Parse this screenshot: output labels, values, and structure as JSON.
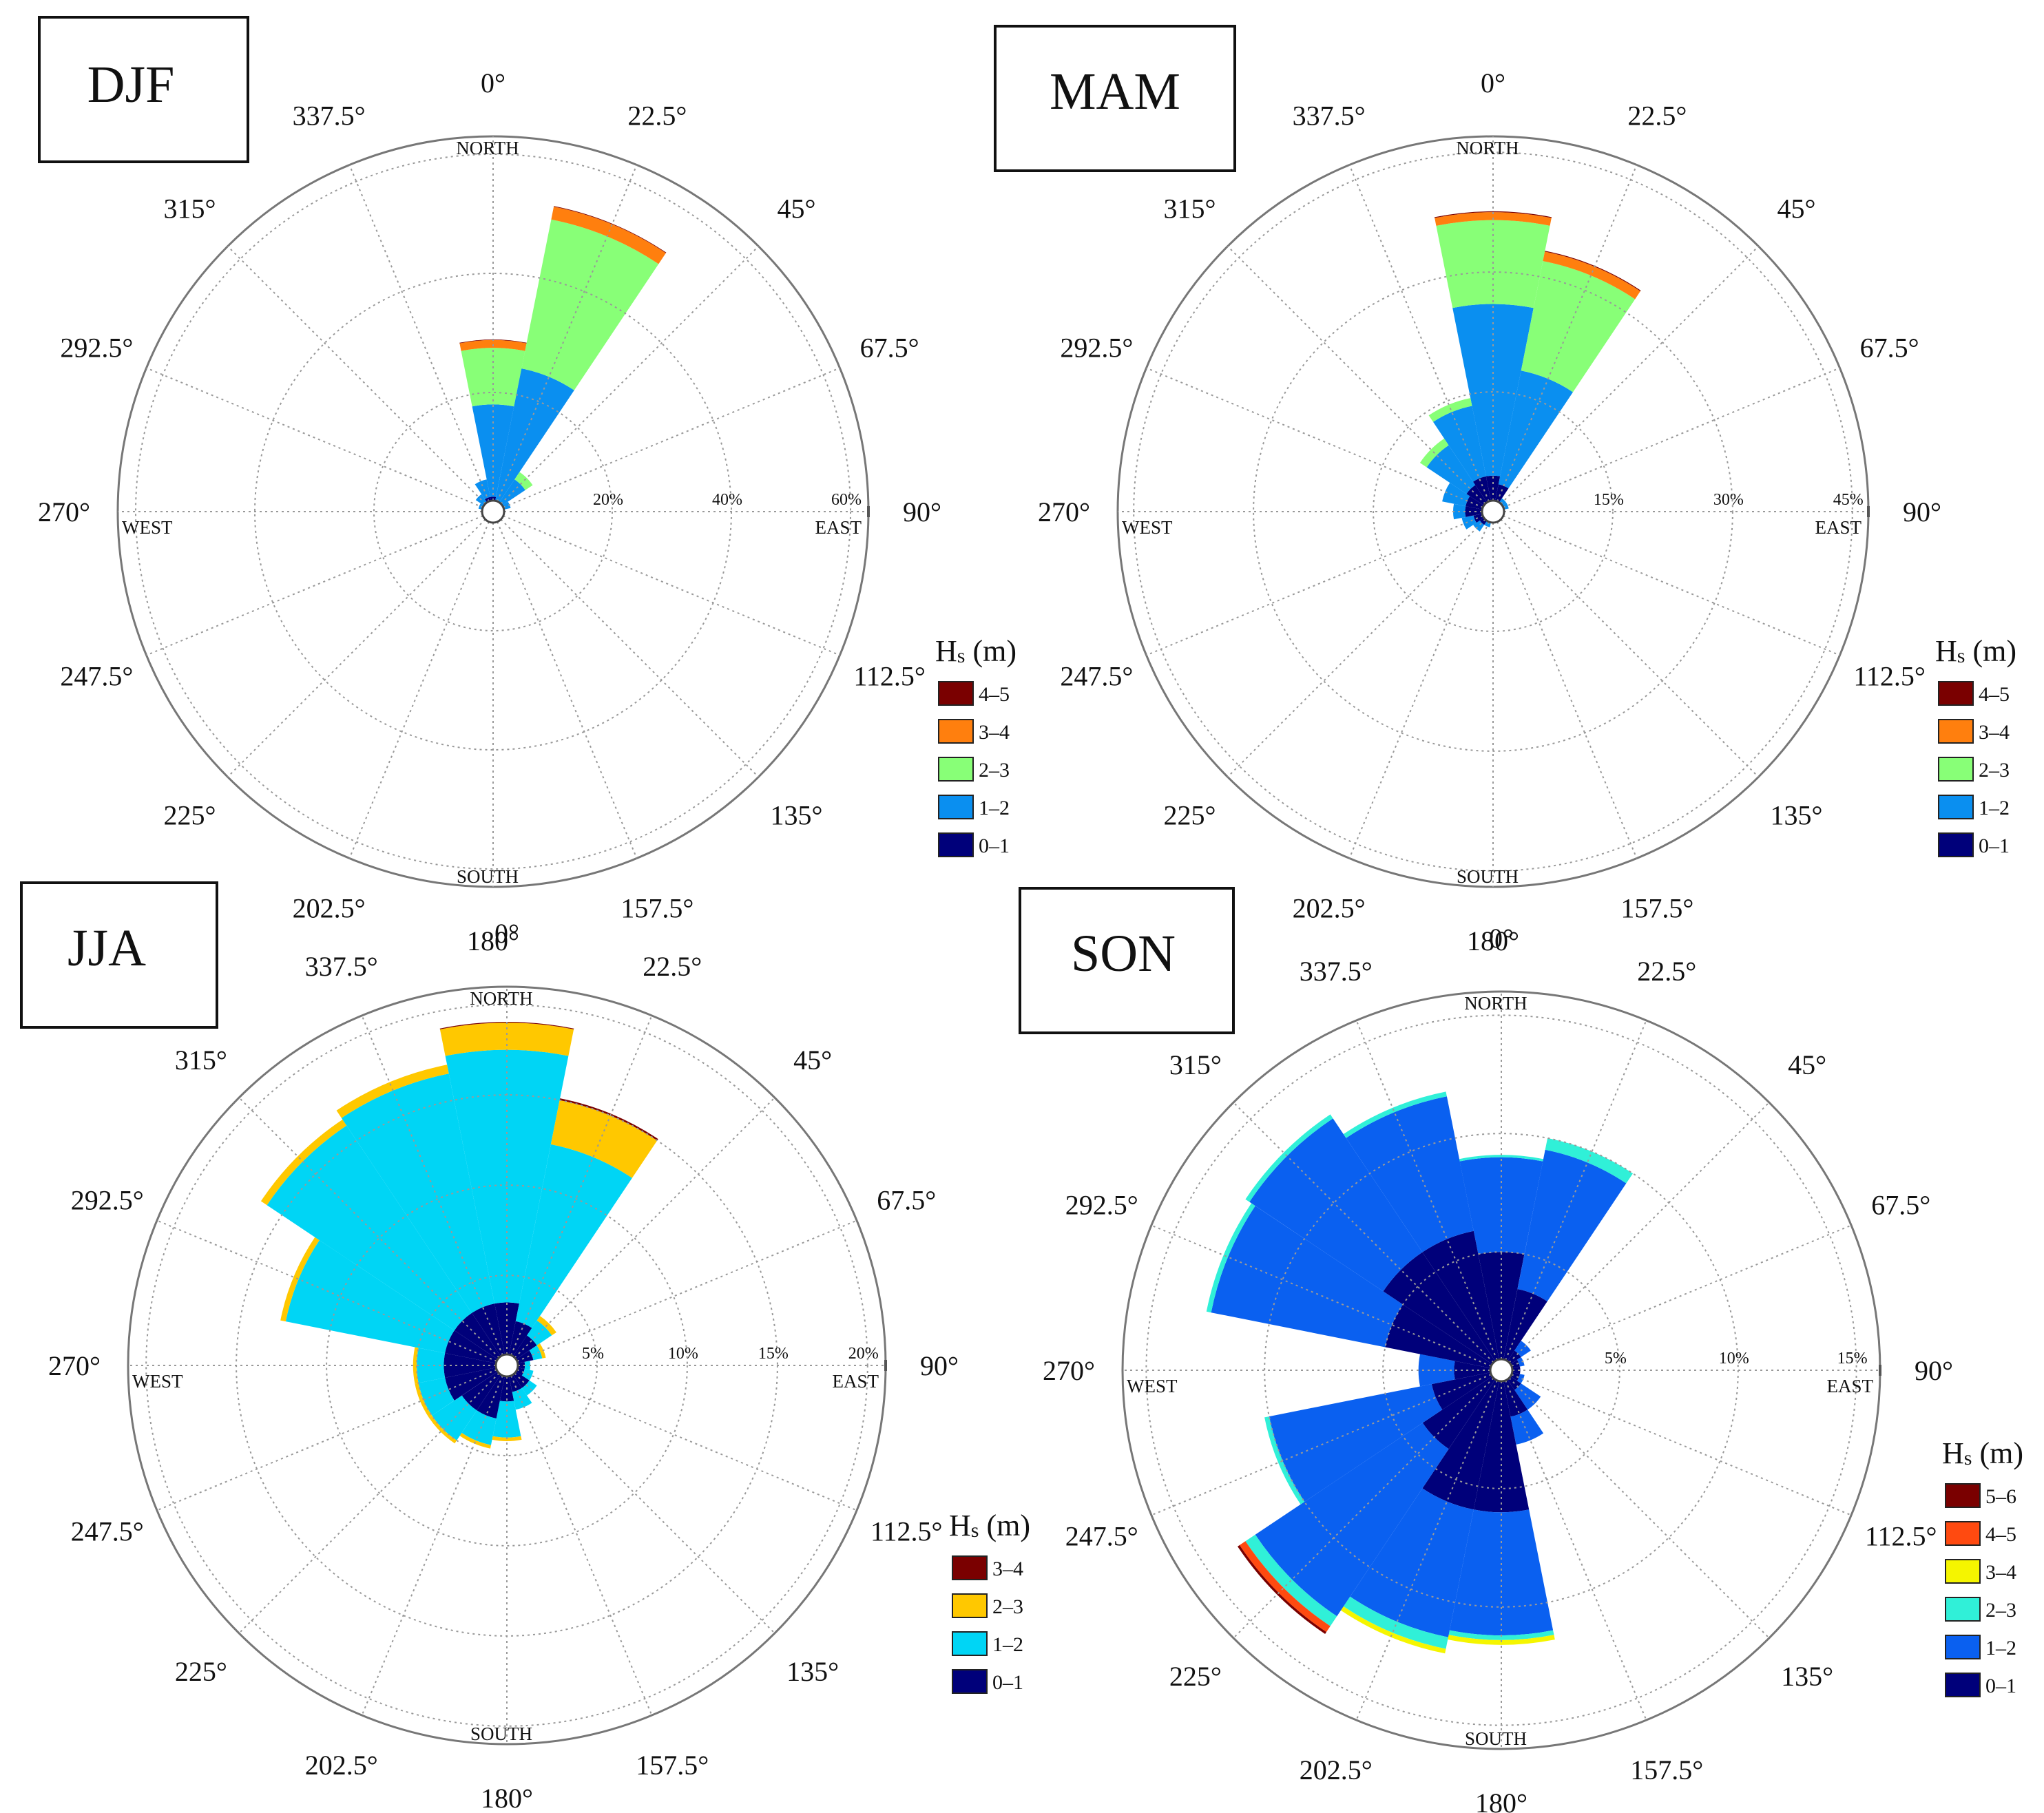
{
  "chart_data": [
    {
      "type": "polar-bar",
      "title": "DJF",
      "direction_labels": [
        "0°",
        "22.5°",
        "45°",
        "67.5°",
        "90°",
        "112.5°",
        "135°",
        "157.5°",
        "180°",
        "202.5°",
        "225°",
        "247.5°",
        "270°",
        "292.5°",
        "315°",
        "337.5°"
      ],
      "cardinal_labels": {
        "north": "NORTH",
        "east": "EAST",
        "south": "SOUTH",
        "west": "WEST"
      },
      "radial_ticks": [
        20,
        40,
        60
      ],
      "radial_tick_labels": [
        "20%",
        "40%",
        "60%"
      ],
      "rmax": 63,
      "legend_title": "Hs (m)",
      "legend_title_main": "H",
      "legend_title_sub": "s",
      "legend_title_unit": " (m)",
      "bins": [
        {
          "label": "4–5",
          "color": "#7a0000"
        },
        {
          "label": "3–4",
          "color": "#ff7f0e"
        },
        {
          "label": "2–3",
          "color": "#88ff77"
        },
        {
          "label": "1–2",
          "color": "#0a8ff0"
        },
        {
          "label": "0–1",
          "color": "#00007a"
        }
      ],
      "series_order": [
        "0–1",
        "1–2",
        "2–3",
        "3–4",
        "4–5"
      ],
      "bin_colors": {
        "0–1": "#00007a",
        "1–2": "#0a8ff0",
        "2–3": "#88ff77",
        "3–4": "#ff7f0e",
        "4–5": "#7a0000"
      },
      "sectors": [
        {
          "dir": 0,
          "cum": [
            2.5,
            18.0,
            27.5,
            28.8,
            28.9
          ]
        },
        {
          "dir": 22.5,
          "cum": [
            2.0,
            24.5,
            50.0,
            52.2,
            52.3
          ]
        },
        {
          "dir": 45,
          "cum": [
            2.0,
            6.5,
            8.0,
            8.0,
            8.0
          ]
        },
        {
          "dir": 67.5,
          "cum": [
            1.8,
            3.0,
            3.0,
            3.0,
            3.0
          ]
        },
        {
          "dir": 90,
          "cum": [
            0.6,
            0.6,
            0.6,
            0.6,
            0.6
          ]
        },
        {
          "dir": 112.5,
          "cum": [
            0.6,
            0.6,
            0.6,
            0.6,
            0.6
          ]
        },
        {
          "dir": 135,
          "cum": [
            0.6,
            0.6,
            0.6,
            0.6,
            0.6
          ]
        },
        {
          "dir": 157.5,
          "cum": [
            0.6,
            0.6,
            0.6,
            0.6,
            0.6
          ]
        },
        {
          "dir": 180,
          "cum": [
            0.6,
            0.6,
            0.6,
            0.6,
            0.6
          ]
        },
        {
          "dir": 202.5,
          "cum": [
            0.6,
            0.6,
            0.6,
            0.6,
            0.6
          ]
        },
        {
          "dir": 225,
          "cum": [
            0.6,
            0.6,
            0.6,
            0.6,
            0.6
          ]
        },
        {
          "dir": 247.5,
          "cum": [
            0.6,
            0.6,
            0.6,
            0.6,
            0.6
          ]
        },
        {
          "dir": 270,
          "cum": [
            0.8,
            0.8,
            0.8,
            0.8,
            0.8
          ]
        },
        {
          "dir": 292.5,
          "cum": [
            1.5,
            2.5,
            2.5,
            2.5,
            2.5
          ]
        },
        {
          "dir": 315,
          "cum": [
            2.0,
            3.5,
            3.5,
            3.5,
            3.5
          ]
        },
        {
          "dir": 337.5,
          "cum": [
            2.5,
            5.5,
            5.5,
            5.5,
            5.5
          ]
        }
      ]
    },
    {
      "type": "polar-bar",
      "title": "MAM",
      "direction_labels": [
        "0°",
        "22.5°",
        "45°",
        "67.5°",
        "90°",
        "112.5°",
        "135°",
        "157.5°",
        "180°",
        "202.5°",
        "225°",
        "247.5°",
        "270°",
        "292.5°",
        "315°",
        "337.5°"
      ],
      "cardinal_labels": {
        "north": "NORTH",
        "east": "EAST",
        "south": "SOUTH",
        "west": "WEST"
      },
      "radial_ticks": [
        15,
        30,
        45
      ],
      "radial_tick_labels": [
        "15%",
        "30%",
        "45%"
      ],
      "rmax": 47,
      "legend_title": "Hs (m)",
      "legend_title_main": "H",
      "legend_title_sub": "s",
      "legend_title_unit": " (m)",
      "bins": [
        {
          "label": "4–5",
          "color": "#7a0000"
        },
        {
          "label": "3–4",
          "color": "#ff7f0e"
        },
        {
          "label": "2–3",
          "color": "#88ff77"
        },
        {
          "label": "1–2",
          "color": "#0a8ff0"
        },
        {
          "label": "0–1",
          "color": "#00007a"
        }
      ],
      "series_order": [
        "0–1",
        "1–2",
        "2–3",
        "3–4",
        "4–5"
      ],
      "bin_colors": {
        "0–1": "#00007a",
        "1–2": "#0a8ff0",
        "2–3": "#88ff77",
        "3–4": "#ff7f0e",
        "4–5": "#7a0000"
      },
      "sectors": [
        {
          "dir": 0,
          "cum": [
            4.5,
            26.0,
            36.5,
            37.5,
            37.6
          ]
        },
        {
          "dir": 22.5,
          "cum": [
            3.5,
            18.0,
            32.0,
            33.2,
            33.3
          ]
        },
        {
          "dir": 45,
          "cum": [
            1.5,
            2.0,
            2.0,
            2.0,
            2.0
          ]
        },
        {
          "dir": 67.5,
          "cum": [
            1.5,
            2.0,
            2.0,
            2.0,
            2.0
          ]
        },
        {
          "dir": 90,
          "cum": [
            1.0,
            1.0,
            1.0,
            1.0,
            1.0
          ]
        },
        {
          "dir": 112.5,
          "cum": [
            1.0,
            1.0,
            1.0,
            1.0,
            1.0
          ]
        },
        {
          "dir": 135,
          "cum": [
            1.0,
            1.0,
            1.0,
            1.0,
            1.0
          ]
        },
        {
          "dir": 157.5,
          "cum": [
            1.0,
            1.0,
            1.0,
            1.0,
            1.0
          ]
        },
        {
          "dir": 180,
          "cum": [
            1.2,
            1.2,
            1.2,
            1.2,
            1.2
          ]
        },
        {
          "dir": 202.5,
          "cum": [
            1.5,
            2.0,
            2.0,
            2.0,
            2.0
          ]
        },
        {
          "dir": 225,
          "cum": [
            2.0,
            3.0,
            3.0,
            3.0,
            3.0
          ]
        },
        {
          "dir": 247.5,
          "cum": [
            2.5,
            4.0,
            4.0,
            4.0,
            4.0
          ]
        },
        {
          "dir": 270,
          "cum": [
            3.5,
            5.0,
            5.0,
            5.0,
            5.0
          ]
        },
        {
          "dir": 292.5,
          "cum": [
            3.5,
            6.5,
            6.5,
            6.5,
            6.5
          ]
        },
        {
          "dir": 315,
          "cum": [
            4.0,
            10.0,
            11.0,
            11.0,
            11.0
          ]
        },
        {
          "dir": 337.5,
          "cum": [
            4.5,
            13.5,
            14.5,
            14.5,
            14.5
          ]
        }
      ]
    },
    {
      "type": "polar-bar",
      "title": "JJA",
      "direction_labels": [
        "0°",
        "22.5°",
        "45°",
        "67.5°",
        "90°",
        "112.5°",
        "135°",
        "157.5°",
        "180°",
        "202.5°",
        "225°",
        "247.5°",
        "270°",
        "292.5°",
        "315°",
        "337.5°"
      ],
      "cardinal_labels": {
        "north": "NORTH",
        "east": "EAST",
        "south": "SOUTH",
        "west": "WEST"
      },
      "radial_ticks": [
        5,
        10,
        15,
        20
      ],
      "radial_tick_labels": [
        "5%",
        "10%",
        "15%",
        "20%"
      ],
      "rmax": 21,
      "legend_title": "Hs (m)",
      "legend_title_main": "H",
      "legend_title_sub": "s",
      "legend_title_unit": " (m)",
      "bins": [
        {
          "label": "3–4",
          "color": "#7a0000"
        },
        {
          "label": "2–3",
          "color": "#ffc800"
        },
        {
          "label": "1–2",
          "color": "#00d5f5"
        },
        {
          "label": "0–1",
          "color": "#00007a"
        }
      ],
      "series_order": [
        "0–1",
        "1–2",
        "2–3",
        "3–4"
      ],
      "bin_colors": {
        "0–1": "#00007a",
        "1–2": "#00d5f5",
        "2–3": "#ffc800",
        "3–4": "#7a0000"
      },
      "sectors": [
        {
          "dir": 0,
          "cum": [
            3.5,
            17.5,
            19.0,
            19.05
          ]
        },
        {
          "dir": 22.5,
          "cum": [
            2.5,
            12.5,
            15.0,
            15.1
          ]
        },
        {
          "dir": 45,
          "cum": [
            2.0,
            3.0,
            3.3,
            3.3
          ]
        },
        {
          "dir": 67.5,
          "cum": [
            1.5,
            2.0,
            2.2,
            2.2
          ]
        },
        {
          "dir": 90,
          "cum": [
            1.0,
            1.3,
            1.3,
            1.3
          ]
        },
        {
          "dir": 112.5,
          "cum": [
            1.0,
            1.5,
            1.5,
            1.5
          ]
        },
        {
          "dir": 135,
          "cum": [
            1.5,
            2.0,
            2.0,
            2.0
          ]
        },
        {
          "dir": 157.5,
          "cum": [
            1.5,
            2.5,
            2.5,
            2.5
          ]
        },
        {
          "dir": 180,
          "cum": [
            2.0,
            4.0,
            4.2,
            4.2
          ]
        },
        {
          "dir": 202.5,
          "cum": [
            3.0,
            4.5,
            4.7,
            4.7
          ]
        },
        {
          "dir": 225,
          "cum": [
            3.0,
            5.0,
            5.2,
            5.2
          ]
        },
        {
          "dir": 247.5,
          "cum": [
            3.5,
            5.0,
            5.2,
            5.2
          ]
        },
        {
          "dir": 270,
          "cum": [
            3.5,
            5.0,
            5.2,
            5.2
          ]
        },
        {
          "dir": 292.5,
          "cum": [
            3.5,
            12.5,
            12.8,
            12.8
          ]
        },
        {
          "dir": 315,
          "cum": [
            3.5,
            16.0,
            16.4,
            16.4
          ]
        },
        {
          "dir": 337.5,
          "cum": [
            3.5,
            16.5,
            17.0,
            17.0
          ]
        }
      ]
    },
    {
      "type": "polar-bar",
      "title": "SON",
      "direction_labels": [
        "0°",
        "22.5°",
        "45°",
        "67.5°",
        "90°",
        "112.5°",
        "135°",
        "157.5°",
        "180°",
        "202.5°",
        "225°",
        "247.5°",
        "270°",
        "292.5°",
        "315°",
        "337.5°"
      ],
      "cardinal_labels": {
        "north": "NORTH",
        "east": "EAST",
        "south": "SOUTH",
        "west": "WEST"
      },
      "radial_ticks": [
        5,
        10,
        15
      ],
      "radial_tick_labels": [
        "5%",
        "10%",
        "15%"
      ],
      "rmax": 16,
      "legend_title": "Hs (m)",
      "legend_title_main": "H",
      "legend_title_sub": "s",
      "legend_title_unit": " (m)",
      "bins": [
        {
          "label": "5–6",
          "color": "#7a0000"
        },
        {
          "label": "4–5",
          "color": "#ff4a10"
        },
        {
          "label": "3–4",
          "color": "#f5f500"
        },
        {
          "label": "2–3",
          "color": "#30f0d8"
        },
        {
          "label": "1–2",
          "color": "#0a60f0"
        },
        {
          "label": "0–1",
          "color": "#00007a"
        }
      ],
      "series_order": [
        "0–1",
        "1–2",
        "2–3",
        "3–4",
        "4–5",
        "5–6"
      ],
      "bin_colors": {
        "0–1": "#00007a",
        "1–2": "#0a60f0",
        "2–3": "#30f0d8",
        "3–4": "#f5f500",
        "4–5": "#ff4a10",
        "5–6": "#7a0000"
      },
      "sectors": [
        {
          "dir": 0,
          "cum": [
            5.0,
            9.0,
            9.1,
            9.1,
            9.1,
            9.1
          ]
        },
        {
          "dir": 22.5,
          "cum": [
            3.5,
            9.5,
            10.0,
            10.0,
            10.0,
            10.0
          ]
        },
        {
          "dir": 45,
          "cum": [
            1.0,
            1.5,
            1.5,
            1.5,
            1.5,
            1.5
          ]
        },
        {
          "dir": 67.5,
          "cum": [
            0.8,
            1.0,
            1.0,
            1.0,
            1.0,
            1.0
          ]
        },
        {
          "dir": 90,
          "cum": [
            0.8,
            0.8,
            0.8,
            0.8,
            0.8,
            0.8
          ]
        },
        {
          "dir": 112.5,
          "cum": [
            0.8,
            1.0,
            1.0,
            1.0,
            1.0,
            1.0
          ]
        },
        {
          "dir": 135,
          "cum": [
            1.0,
            2.0,
            2.0,
            2.0,
            2.0,
            2.0
          ]
        },
        {
          "dir": 157.5,
          "cum": [
            2.0,
            3.2,
            3.2,
            3.2,
            3.2,
            3.2
          ]
        },
        {
          "dir": 180,
          "cum": [
            6.0,
            11.2,
            11.4,
            11.6,
            11.6,
            11.6
          ]
        },
        {
          "dir": 202.5,
          "cum": [
            6.0,
            11.5,
            12.0,
            12.2,
            12.2,
            12.2
          ]
        },
        {
          "dir": 225,
          "cum": [
            4.0,
            12.5,
            13.0,
            13.0,
            13.3,
            13.4
          ]
        },
        {
          "dir": 247.5,
          "cum": [
            3.0,
            10.0,
            10.2,
            10.2,
            10.2,
            10.2
          ]
        },
        {
          "dir": 270,
          "cum": [
            2.0,
            3.5,
            3.5,
            3.5,
            3.5,
            3.5
          ]
        },
        {
          "dir": 292.5,
          "cum": [
            5.0,
            12.5,
            12.7,
            12.7,
            12.7,
            12.7
          ]
        },
        {
          "dir": 315,
          "cum": [
            6.0,
            12.8,
            13.0,
            13.0,
            13.0,
            13.0
          ]
        },
        {
          "dir": 337.5,
          "cum": [
            6.0,
            11.8,
            12.0,
            12.0,
            12.0,
            12.0
          ]
        }
      ]
    }
  ]
}
